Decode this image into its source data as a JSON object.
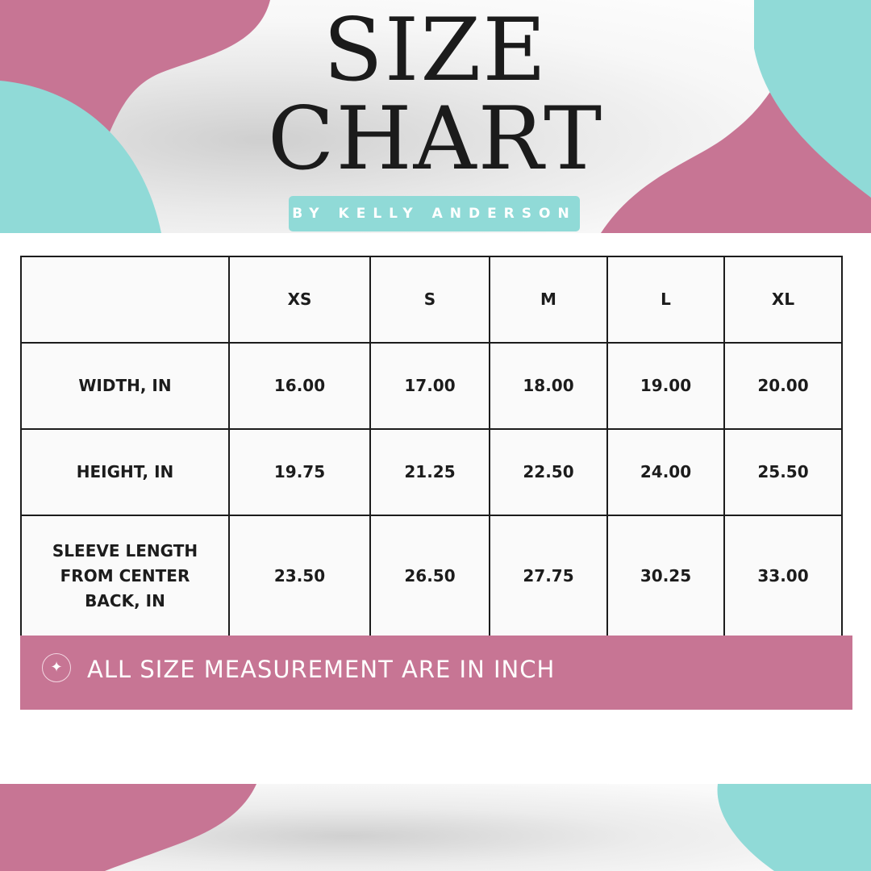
{
  "header": {
    "title_line1": "SIZE",
    "title_line2": "CHART",
    "byline": "BY KELLY ANDERSON"
  },
  "colors": {
    "pink": "#c77594",
    "teal": "#90dad7"
  },
  "table": {
    "columns": [
      "",
      "XS",
      "S",
      "M",
      "L",
      "XL"
    ],
    "rows": [
      {
        "label": "WIDTH, IN",
        "values": [
          "16.00",
          "17.00",
          "18.00",
          "19.00",
          "20.00"
        ]
      },
      {
        "label": "HEIGHT, IN",
        "values": [
          "19.75",
          "21.25",
          "22.50",
          "24.00",
          "25.50"
        ]
      },
      {
        "label": "SLEEVE LENGTH FROM CENTER BACK, IN",
        "values": [
          "23.50",
          "26.50",
          "27.75",
          "30.25",
          "33.00"
        ]
      }
    ]
  },
  "banner": {
    "icon": "sparkle-icon",
    "text": "ALL SIZE MEASUREMENT ARE IN INCH"
  }
}
